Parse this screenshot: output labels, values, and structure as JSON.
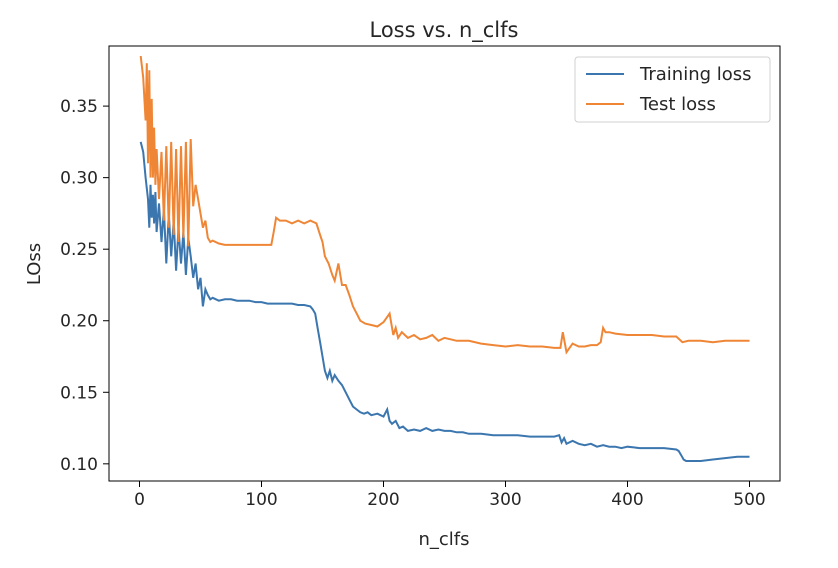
{
  "chart_data": {
    "type": "line",
    "title": "Loss vs. n_clfs",
    "xlabel": "n_clfs",
    "ylabel": "LOss",
    "xlim": [
      -25,
      525
    ],
    "ylim": [
      0.088,
      0.392
    ],
    "xticks": [
      0,
      100,
      200,
      300,
      400,
      500
    ],
    "yticks": [
      0.1,
      0.15,
      0.2,
      0.25,
      0.3,
      0.35
    ],
    "xtick_labels": [
      "0",
      "100",
      "200",
      "300",
      "400",
      "500"
    ],
    "ytick_labels": [
      "0.10",
      "0.15",
      "0.20",
      "0.25",
      "0.30",
      "0.35"
    ],
    "grid": false,
    "legend_position": "top-right",
    "series": [
      {
        "name": "Training loss",
        "color": "#3b76af",
        "x": [
          1,
          3,
          5,
          7,
          8,
          9,
          10,
          11,
          12,
          13,
          14,
          16,
          18,
          20,
          22,
          24,
          26,
          28,
          30,
          32,
          34,
          36,
          38,
          40,
          42,
          44,
          46,
          48,
          50,
          52,
          54,
          56,
          58,
          60,
          65,
          70,
          75,
          80,
          85,
          90,
          95,
          100,
          105,
          110,
          115,
          120,
          125,
          130,
          135,
          140,
          142,
          144,
          146,
          148,
          150,
          152,
          154,
          156,
          158,
          160,
          163,
          166,
          169,
          172,
          175,
          178,
          181,
          184,
          187,
          190,
          195,
          200,
          203,
          205,
          207,
          210,
          213,
          216,
          220,
          225,
          230,
          235,
          240,
          245,
          250,
          255,
          260,
          265,
          270,
          280,
          290,
          300,
          310,
          320,
          330,
          340,
          344,
          346,
          348,
          350,
          355,
          360,
          365,
          370,
          375,
          380,
          385,
          390,
          395,
          400,
          410,
          420,
          430,
          440,
          442,
          444,
          446,
          448,
          450,
          460,
          470,
          480,
          490,
          500
        ],
        "y": [
          0.325,
          0.318,
          0.3,
          0.285,
          0.265,
          0.295,
          0.272,
          0.288,
          0.268,
          0.29,
          0.262,
          0.282,
          0.255,
          0.278,
          0.24,
          0.275,
          0.245,
          0.27,
          0.235,
          0.265,
          0.24,
          0.262,
          0.232,
          0.258,
          0.245,
          0.23,
          0.24,
          0.222,
          0.23,
          0.21,
          0.222,
          0.218,
          0.215,
          0.216,
          0.214,
          0.215,
          0.215,
          0.214,
          0.214,
          0.214,
          0.213,
          0.213,
          0.212,
          0.212,
          0.212,
          0.212,
          0.212,
          0.211,
          0.211,
          0.21,
          0.208,
          0.205,
          0.195,
          0.185,
          0.175,
          0.165,
          0.16,
          0.165,
          0.158,
          0.162,
          0.158,
          0.155,
          0.15,
          0.145,
          0.14,
          0.138,
          0.136,
          0.135,
          0.136,
          0.134,
          0.135,
          0.133,
          0.138,
          0.13,
          0.128,
          0.13,
          0.125,
          0.126,
          0.123,
          0.124,
          0.123,
          0.125,
          0.123,
          0.124,
          0.123,
          0.123,
          0.122,
          0.122,
          0.121,
          0.121,
          0.12,
          0.12,
          0.12,
          0.119,
          0.119,
          0.119,
          0.12,
          0.115,
          0.118,
          0.114,
          0.116,
          0.114,
          0.113,
          0.114,
          0.112,
          0.113,
          0.112,
          0.112,
          0.111,
          0.112,
          0.111,
          0.111,
          0.111,
          0.11,
          0.109,
          0.106,
          0.103,
          0.102,
          0.102,
          0.102,
          0.103,
          0.104,
          0.105,
          0.105
        ]
      },
      {
        "name": "Test loss",
        "color": "#ef8636",
        "x": [
          1,
          3,
          5,
          6,
          7,
          8,
          9,
          10,
          11,
          12,
          13,
          14,
          16,
          18,
          20,
          22,
          24,
          26,
          28,
          30,
          32,
          34,
          36,
          38,
          40,
          42,
          44,
          46,
          48,
          50,
          52,
          54,
          56,
          58,
          60,
          65,
          70,
          75,
          80,
          90,
          100,
          108,
          110,
          112,
          115,
          120,
          125,
          130,
          135,
          140,
          145,
          148,
          150,
          152,
          155,
          158,
          160,
          163,
          166,
          169,
          172,
          175,
          178,
          181,
          185,
          190,
          195,
          200,
          205,
          208,
          210,
          212,
          215,
          220,
          225,
          230,
          235,
          240,
          245,
          250,
          255,
          260,
          270,
          280,
          290,
          300,
          310,
          320,
          330,
          340,
          345,
          347,
          350,
          355,
          360,
          365,
          370,
          375,
          378,
          380,
          382,
          385,
          390,
          400,
          410,
          420,
          430,
          440,
          445,
          450,
          460,
          470,
          480,
          490,
          500
        ],
        "y": [
          0.385,
          0.37,
          0.34,
          0.38,
          0.31,
          0.375,
          0.3,
          0.355,
          0.3,
          0.335,
          0.295,
          0.32,
          0.285,
          0.318,
          0.27,
          0.322,
          0.265,
          0.325,
          0.26,
          0.32,
          0.255,
          0.322,
          0.258,
          0.325,
          0.252,
          0.327,
          0.28,
          0.295,
          0.285,
          0.275,
          0.265,
          0.27,
          0.258,
          0.255,
          0.256,
          0.254,
          0.253,
          0.253,
          0.253,
          0.253,
          0.253,
          0.253,
          0.262,
          0.272,
          0.27,
          0.27,
          0.268,
          0.27,
          0.268,
          0.27,
          0.268,
          0.26,
          0.255,
          0.245,
          0.24,
          0.232,
          0.228,
          0.24,
          0.225,
          0.225,
          0.218,
          0.21,
          0.205,
          0.2,
          0.198,
          0.197,
          0.196,
          0.199,
          0.205,
          0.19,
          0.195,
          0.188,
          0.192,
          0.188,
          0.19,
          0.187,
          0.188,
          0.19,
          0.186,
          0.188,
          0.187,
          0.186,
          0.186,
          0.184,
          0.183,
          0.182,
          0.183,
          0.182,
          0.182,
          0.181,
          0.181,
          0.192,
          0.178,
          0.184,
          0.182,
          0.182,
          0.183,
          0.183,
          0.185,
          0.195,
          0.192,
          0.192,
          0.191,
          0.19,
          0.19,
          0.19,
          0.189,
          0.189,
          0.185,
          0.186,
          0.186,
          0.185,
          0.186,
          0.186,
          0.186
        ]
      }
    ]
  }
}
